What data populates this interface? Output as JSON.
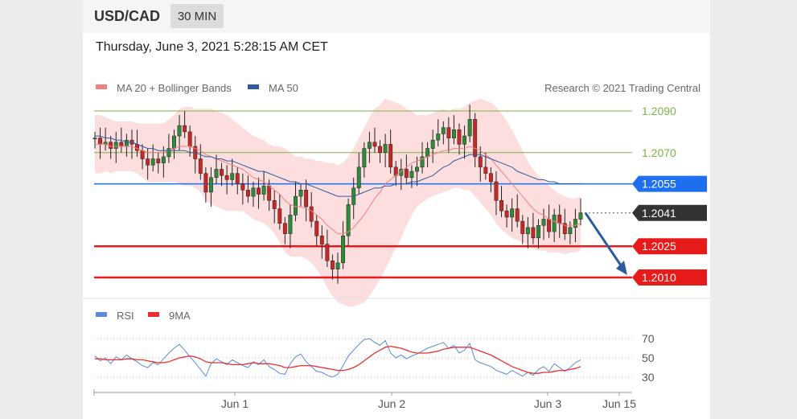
{
  "header": {
    "pair": "USD/CAD",
    "timeframe": "30 MIN"
  },
  "datetime": "Thursday, June 3, 2021 5:28:15 AM CET",
  "main_legend": {
    "ma20_label": "MA 20 + Bollinger Bands",
    "ma50_label": "MA 50",
    "ma20_color": "#f08080",
    "ma50_color": "#2e5a9e",
    "credit": "Research © 2021 Trading Central"
  },
  "rsi_legend": {
    "rsi_label": "RSI",
    "ma9_label": "9MA",
    "rsi_color": "#5b8ad8",
    "ma9_color": "#e83030"
  },
  "chart_data": [
    {
      "type": "line",
      "title": "USD/CAD",
      "ylim": [
        1.2,
        1.2104
      ],
      "x_ticks": [
        "Jun 1",
        "Jun 2",
        "Jun 3",
        "Jun 15"
      ],
      "price_levels": [
        {
          "label": "1.2090",
          "value": 1.209,
          "color": "#7cb342",
          "kind": "resistance"
        },
        {
          "label": "1.2070",
          "value": 1.207,
          "color": "#7cb342",
          "kind": "resistance"
        },
        {
          "label": "1.2055",
          "value": 1.2055,
          "color": "#1e6ff0",
          "kind": "pivot"
        },
        {
          "label": "1.2041",
          "value": 1.2041,
          "color": "#333333",
          "kind": "last"
        },
        {
          "label": "1.2025",
          "value": 1.2025,
          "color": "#e81b1b",
          "kind": "support"
        },
        {
          "label": "1.2010",
          "value": 1.201,
          "color": "#e81b1b",
          "kind": "support"
        }
      ],
      "arrow": {
        "from": 1.2041,
        "to": 1.201,
        "direction": "down",
        "color": "#2e5a9e"
      },
      "close_series": [
        1.2077,
        1.2074,
        1.2075,
        1.2072,
        1.2075,
        1.2073,
        1.2076,
        1.2074,
        1.2071,
        1.2067,
        1.2064,
        1.2067,
        1.2065,
        1.2068,
        1.2072,
        1.2078,
        1.2083,
        1.208,
        1.2073,
        1.2067,
        1.206,
        1.2051,
        1.2058,
        1.2062,
        1.2059,
        1.2057,
        1.206,
        1.2055,
        1.2052,
        1.2049,
        1.2053,
        1.205,
        1.2054,
        1.2047,
        1.2043,
        1.2036,
        1.2031,
        1.204,
        1.2049,
        1.2052,
        1.2044,
        1.2037,
        1.203,
        1.2026,
        1.2018,
        1.2014,
        1.2017,
        1.203,
        1.2045,
        1.2053,
        1.2063,
        1.2072,
        1.2075,
        1.2073,
        1.207,
        1.2074,
        1.2063,
        1.2059,
        1.2062,
        1.2058,
        1.2061,
        1.2063,
        1.2068,
        1.2072,
        1.2076,
        1.2079,
        1.2082,
        1.2077,
        1.2081,
        1.2074,
        1.2078,
        1.2086,
        1.2068,
        1.2063,
        1.206,
        1.2056,
        1.2047,
        1.2042,
        1.2039,
        1.2043,
        1.2037,
        1.2031,
        1.2034,
        1.2029,
        1.2035,
        1.2038,
        1.2032,
        1.204,
        1.2036,
        1.2031,
        1.2034,
        1.2038,
        1.2041
      ],
      "ma20_series": [
        1.2074,
        1.2074,
        1.2074,
        1.2073,
        1.2073,
        1.2073,
        1.2073,
        1.2073,
        1.2072,
        1.2071,
        1.207,
        1.207,
        1.207,
        1.207,
        1.2071,
        1.2072,
        1.2073,
        1.2073,
        1.2073,
        1.2072,
        1.2071,
        1.2069,
        1.2068,
        1.2067,
        1.2066,
        1.2065,
        1.2064,
        1.2063,
        1.2062,
        1.206,
        1.2058,
        1.2057,
        1.2056,
        1.2054,
        1.2052,
        1.205,
        1.2047,
        1.2045,
        1.2044,
        1.2044,
        1.2043,
        1.2042,
        1.204,
        1.2038,
        1.2035,
        1.2033,
        1.2031,
        1.2031,
        1.2032,
        1.2034,
        1.2037,
        1.204,
        1.2044,
        1.2048,
        1.2051,
        1.2055,
        1.2057,
        1.2059,
        1.2061,
        1.2063,
        1.2065,
        1.2066,
        1.2067,
        1.2068,
        1.2069,
        1.207,
        1.2071,
        1.2071,
        1.2072,
        1.2072,
        1.2072,
        1.2073,
        1.2072,
        1.2071,
        1.2069,
        1.2067,
        1.2064,
        1.2061,
        1.2058,
        1.2055,
        1.2052,
        1.2049,
        1.2046,
        1.2043,
        1.2041,
        1.204,
        1.2038,
        1.2037,
        1.2036,
        1.2035,
        1.2035,
        1.2035,
        1.2036
      ],
      "ma50_series": [
        1.2078,
        1.2078,
        1.2077,
        1.2077,
        1.2076,
        1.2076,
        1.2075,
        1.2075,
        1.2074,
        1.2073,
        1.2072,
        1.2072,
        1.2071,
        1.2071,
        1.2071,
        1.2071,
        1.2071,
        1.2071,
        1.207,
        1.207,
        1.2069,
        1.2068,
        1.2068,
        1.2067,
        1.2067,
        1.2066,
        1.2066,
        1.2065,
        1.2064,
        1.2063,
        1.2062,
        1.2061,
        1.2061,
        1.206,
        1.2059,
        1.2058,
        1.2057,
        1.2056,
        1.2056,
        1.2055,
        1.2055,
        1.2054,
        1.2053,
        1.2052,
        1.2051,
        1.205,
        1.2049,
        1.2049,
        1.2049,
        1.2049,
        1.205,
        1.2051,
        1.2052,
        1.2053,
        1.2053,
        1.2054,
        1.2054,
        1.2055,
        1.2055,
        1.2055,
        1.2056,
        1.2056,
        1.2057,
        1.2058,
        1.2059,
        1.2061,
        1.2063,
        1.2064,
        1.2066,
        1.2067,
        1.2068,
        1.2069,
        1.2069,
        1.2069,
        1.2068,
        1.2067,
        1.2066,
        1.2065,
        1.2064,
        1.2063,
        1.2061,
        1.206,
        1.2059,
        1.2058,
        1.2057,
        1.2057,
        1.2056,
        1.2056,
        1.2055,
        1.2055,
        1.2055,
        1.2055,
        1.2055
      ],
      "bb_width_series": [
        0.0014,
        0.0014,
        0.0013,
        0.0013,
        0.0012,
        0.0012,
        0.0012,
        0.0012,
        0.0012,
        0.0013,
        0.0014,
        0.0014,
        0.0014,
        0.0014,
        0.0015,
        0.0016,
        0.0018,
        0.0019,
        0.0019,
        0.0019,
        0.002,
        0.0022,
        0.0023,
        0.0023,
        0.0023,
        0.0023,
        0.0022,
        0.0021,
        0.002,
        0.002,
        0.002,
        0.002,
        0.002,
        0.002,
        0.0021,
        0.0023,
        0.0025,
        0.0025,
        0.0024,
        0.0024,
        0.0024,
        0.0025,
        0.0026,
        0.0028,
        0.003,
        0.0032,
        0.0033,
        0.0034,
        0.0036,
        0.0038,
        0.004,
        0.0042,
        0.0043,
        0.0043,
        0.0042,
        0.0041,
        0.0038,
        0.0035,
        0.0032,
        0.0028,
        0.0025,
        0.0022,
        0.0021,
        0.002,
        0.002,
        0.002,
        0.002,
        0.0019,
        0.0019,
        0.0019,
        0.002,
        0.0021,
        0.0023,
        0.0025,
        0.0026,
        0.0027,
        0.0028,
        0.0028,
        0.0027,
        0.0026,
        0.0024,
        0.0022,
        0.002,
        0.0019,
        0.0018,
        0.0017,
        0.0016,
        0.0015,
        0.0014,
        0.0014,
        0.0013,
        0.0013,
        0.0013
      ]
    },
    {
      "type": "line",
      "title": "RSI",
      "ylim": [
        20,
        80
      ],
      "y_ticks": [
        70,
        50,
        30
      ],
      "series": [
        {
          "name": "RSI",
          "values": [
            52,
            47,
            50,
            44,
            51,
            48,
            53,
            49,
            46,
            42,
            40,
            45,
            43,
            49,
            55,
            60,
            64,
            58,
            51,
            45,
            38,
            31,
            44,
            49,
            46,
            43,
            48,
            45,
            42,
            40,
            46,
            43,
            48,
            41,
            38,
            34,
            33,
            44,
            51,
            54,
            46,
            41,
            36,
            35,
            32,
            30,
            33,
            42,
            52,
            58,
            64,
            69,
            70,
            66,
            63,
            68,
            55,
            50,
            53,
            49,
            52,
            54,
            57,
            60,
            62,
            64,
            66,
            60,
            63,
            55,
            58,
            65,
            48,
            45,
            43,
            41,
            37,
            35,
            33,
            37,
            34,
            31,
            35,
            32,
            38,
            41,
            36,
            44,
            40,
            36,
            40,
            45,
            48
          ]
        },
        {
          "name": "9MA",
          "values": [
            49,
            49,
            48,
            48,
            48,
            48,
            49,
            49,
            48,
            48,
            47,
            46,
            45,
            45,
            46,
            48,
            50,
            51,
            52,
            51,
            49,
            46,
            45,
            45,
            45,
            44,
            43,
            43,
            43,
            44,
            45,
            44,
            44,
            44,
            43,
            42,
            40,
            40,
            41,
            42,
            42,
            42,
            41,
            40,
            39,
            38,
            37,
            37,
            38,
            40,
            43,
            47,
            51,
            55,
            58,
            61,
            62,
            61,
            60,
            58,
            56,
            55,
            55,
            55,
            56,
            57,
            59,
            60,
            61,
            61,
            61,
            61,
            59,
            57,
            55,
            53,
            50,
            47,
            44,
            41,
            39,
            37,
            35,
            34,
            34,
            35,
            35,
            36,
            37,
            37,
            38,
            39,
            41
          ]
        }
      ]
    }
  ]
}
